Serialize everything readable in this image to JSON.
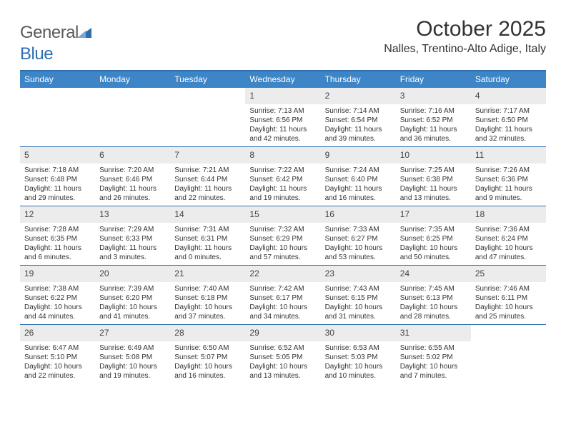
{
  "brand": {
    "text1": "General",
    "text2": "Blue"
  },
  "title": "October 2025",
  "location": "Nalles, Trentino-Alto Adige, Italy",
  "colors": {
    "accent": "#2f6fad",
    "header_bg": "#3d85c6",
    "daynum_bg": "#ececec",
    "text": "#333333",
    "white": "#ffffff"
  },
  "day_labels": [
    "Sunday",
    "Monday",
    "Tuesday",
    "Wednesday",
    "Thursday",
    "Friday",
    "Saturday"
  ],
  "weeks": [
    [
      {
        "empty": true
      },
      {
        "empty": true
      },
      {
        "empty": true
      },
      {
        "n": "1",
        "sr": "7:13 AM",
        "ss": "6:56 PM",
        "dl": "11 hours and 42 minutes."
      },
      {
        "n": "2",
        "sr": "7:14 AM",
        "ss": "6:54 PM",
        "dl": "11 hours and 39 minutes."
      },
      {
        "n": "3",
        "sr": "7:16 AM",
        "ss": "6:52 PM",
        "dl": "11 hours and 36 minutes."
      },
      {
        "n": "4",
        "sr": "7:17 AM",
        "ss": "6:50 PM",
        "dl": "11 hours and 32 minutes."
      }
    ],
    [
      {
        "n": "5",
        "sr": "7:18 AM",
        "ss": "6:48 PM",
        "dl": "11 hours and 29 minutes."
      },
      {
        "n": "6",
        "sr": "7:20 AM",
        "ss": "6:46 PM",
        "dl": "11 hours and 26 minutes."
      },
      {
        "n": "7",
        "sr": "7:21 AM",
        "ss": "6:44 PM",
        "dl": "11 hours and 22 minutes."
      },
      {
        "n": "8",
        "sr": "7:22 AM",
        "ss": "6:42 PM",
        "dl": "11 hours and 19 minutes."
      },
      {
        "n": "9",
        "sr": "7:24 AM",
        "ss": "6:40 PM",
        "dl": "11 hours and 16 minutes."
      },
      {
        "n": "10",
        "sr": "7:25 AM",
        "ss": "6:38 PM",
        "dl": "11 hours and 13 minutes."
      },
      {
        "n": "11",
        "sr": "7:26 AM",
        "ss": "6:36 PM",
        "dl": "11 hours and 9 minutes."
      }
    ],
    [
      {
        "n": "12",
        "sr": "7:28 AM",
        "ss": "6:35 PM",
        "dl": "11 hours and 6 minutes."
      },
      {
        "n": "13",
        "sr": "7:29 AM",
        "ss": "6:33 PM",
        "dl": "11 hours and 3 minutes."
      },
      {
        "n": "14",
        "sr": "7:31 AM",
        "ss": "6:31 PM",
        "dl": "11 hours and 0 minutes."
      },
      {
        "n": "15",
        "sr": "7:32 AM",
        "ss": "6:29 PM",
        "dl": "10 hours and 57 minutes."
      },
      {
        "n": "16",
        "sr": "7:33 AM",
        "ss": "6:27 PM",
        "dl": "10 hours and 53 minutes."
      },
      {
        "n": "17",
        "sr": "7:35 AM",
        "ss": "6:25 PM",
        "dl": "10 hours and 50 minutes."
      },
      {
        "n": "18",
        "sr": "7:36 AM",
        "ss": "6:24 PM",
        "dl": "10 hours and 47 minutes."
      }
    ],
    [
      {
        "n": "19",
        "sr": "7:38 AM",
        "ss": "6:22 PM",
        "dl": "10 hours and 44 minutes."
      },
      {
        "n": "20",
        "sr": "7:39 AM",
        "ss": "6:20 PM",
        "dl": "10 hours and 41 minutes."
      },
      {
        "n": "21",
        "sr": "7:40 AM",
        "ss": "6:18 PM",
        "dl": "10 hours and 37 minutes."
      },
      {
        "n": "22",
        "sr": "7:42 AM",
        "ss": "6:17 PM",
        "dl": "10 hours and 34 minutes."
      },
      {
        "n": "23",
        "sr": "7:43 AM",
        "ss": "6:15 PM",
        "dl": "10 hours and 31 minutes."
      },
      {
        "n": "24",
        "sr": "7:45 AM",
        "ss": "6:13 PM",
        "dl": "10 hours and 28 minutes."
      },
      {
        "n": "25",
        "sr": "7:46 AM",
        "ss": "6:11 PM",
        "dl": "10 hours and 25 minutes."
      }
    ],
    [
      {
        "n": "26",
        "sr": "6:47 AM",
        "ss": "5:10 PM",
        "dl": "10 hours and 22 minutes."
      },
      {
        "n": "27",
        "sr": "6:49 AM",
        "ss": "5:08 PM",
        "dl": "10 hours and 19 minutes."
      },
      {
        "n": "28",
        "sr": "6:50 AM",
        "ss": "5:07 PM",
        "dl": "10 hours and 16 minutes."
      },
      {
        "n": "29",
        "sr": "6:52 AM",
        "ss": "5:05 PM",
        "dl": "10 hours and 13 minutes."
      },
      {
        "n": "30",
        "sr": "6:53 AM",
        "ss": "5:03 PM",
        "dl": "10 hours and 10 minutes."
      },
      {
        "n": "31",
        "sr": "6:55 AM",
        "ss": "5:02 PM",
        "dl": "10 hours and 7 minutes."
      },
      {
        "empty": true
      }
    ]
  ],
  "labels": {
    "sunrise": "Sunrise:",
    "sunset": "Sunset:",
    "daylight": "Daylight:"
  }
}
